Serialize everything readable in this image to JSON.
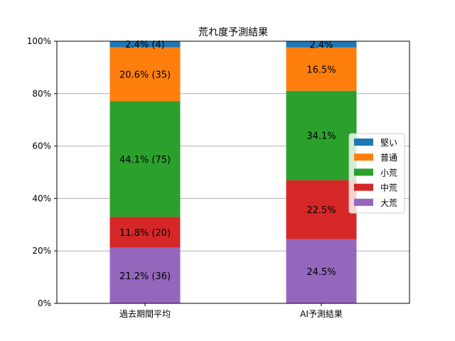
{
  "chart_data": {
    "type": "bar",
    "stacked": true,
    "title": "荒れ度予測結果",
    "xlabel": "",
    "ylabel": "",
    "ylim": [
      0,
      100
    ],
    "y_ticks": [
      "0%",
      "20%",
      "40%",
      "60%",
      "80%",
      "100%"
    ],
    "grid": "horizontal",
    "legend_position": "right",
    "categories": [
      "過去期間平均",
      "AI予測結果"
    ],
    "series": [
      {
        "name": "大荒",
        "color": "#9467bd",
        "values": [
          21.2,
          24.5
        ],
        "labels": [
          "21.2% (36)",
          "24.5%"
        ]
      },
      {
        "name": "中荒",
        "color": "#d62728",
        "values": [
          11.8,
          22.5
        ],
        "labels": [
          "11.8% (20)",
          "22.5%"
        ]
      },
      {
        "name": "小荒",
        "color": "#2ca02c",
        "values": [
          44.1,
          34.1
        ],
        "labels": [
          "44.1% (75)",
          "34.1%"
        ]
      },
      {
        "name": "普通",
        "color": "#ff7f0e",
        "values": [
          20.6,
          16.5
        ],
        "labels": [
          "20.6% (35)",
          "16.5%"
        ]
      },
      {
        "name": "堅い",
        "color": "#1f77b4",
        "values": [
          2.4,
          2.4
        ],
        "labels": [
          "2.4% (4)",
          "2.4%"
        ]
      }
    ],
    "legend_order": [
      "堅い",
      "普通",
      "小荒",
      "中荒",
      "大荒"
    ]
  }
}
